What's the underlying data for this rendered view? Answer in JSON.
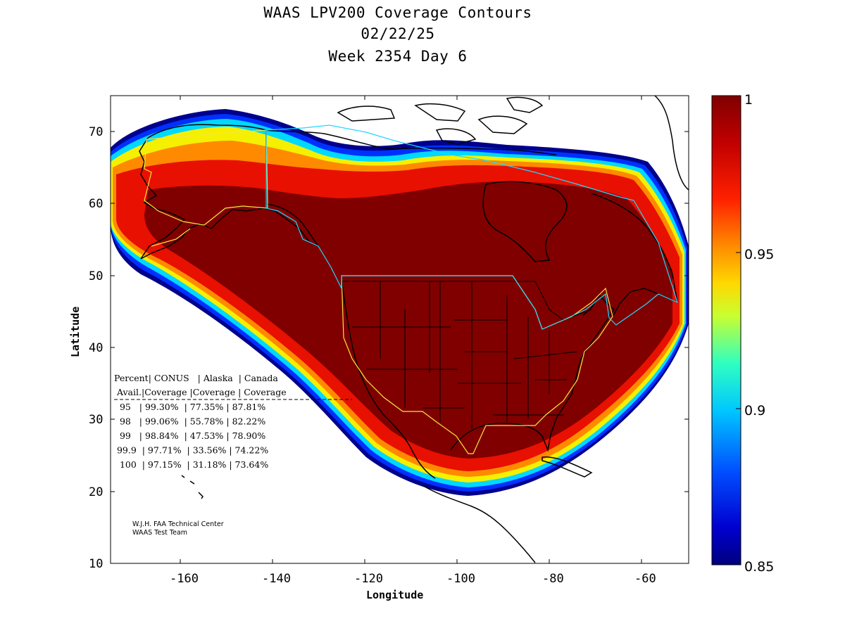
{
  "title": {
    "line1": "WAAS LPV200 Coverage Contours",
    "line2": "02/22/25",
    "line3": "Week 2354 Day 6"
  },
  "axes": {
    "xlabel": "Longitude",
    "ylabel": "Latitude",
    "x_ticks": [
      "-160",
      "-140",
      "-120",
      "-100",
      "-80",
      "-60"
    ],
    "y_ticks": [
      "10",
      "20",
      "30",
      "40",
      "50",
      "60",
      "70"
    ],
    "xlim": [
      -175,
      -50
    ],
    "ylim": [
      10,
      75
    ]
  },
  "colorbar": {
    "ticks": [
      "1",
      "0.95",
      "0.9",
      "0.85"
    ],
    "range": [
      0.85,
      1.0
    ]
  },
  "stats_table": {
    "header1": "Percent| CONUS   | Alaska  | Canada",
    "header2": " Avail.|Coverage |Coverage | Coverage",
    "rows": [
      {
        "percent": "95",
        "conus": "99.30%",
        "alaska": "77.35%",
        "canada": "87.81%"
      },
      {
        "percent": "98",
        "conus": "99.06%",
        "alaska": "55.78%",
        "canada": "82.22%"
      },
      {
        "percent": "99",
        "conus": "98.84%",
        "alaska": "47.53%",
        "canada": "78.90%"
      },
      {
        "percent": "99.9",
        "conus": "97.71%",
        "alaska": "33.56%",
        "canada": "74.22%"
      },
      {
        "percent": "100",
        "conus": "97.15%",
        "alaska": "31.18%",
        "canada": "73.64%"
      }
    ]
  },
  "credits": {
    "line1": "W.J.H. FAA Technical Center",
    "line2": "WAAS Test Team"
  },
  "colors": {
    "dark_red": "#800000",
    "red": "#e81000",
    "orange": "#ff8a00",
    "yellow": "#f5f000",
    "cyan": "#00d8ff",
    "blue": "#0030ff",
    "navy": "#00008c"
  }
}
